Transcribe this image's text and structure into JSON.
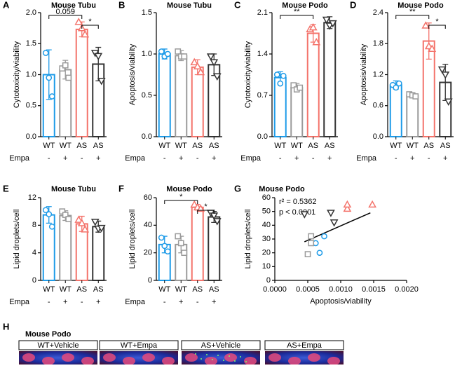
{
  "chart_data": [
    {
      "type": "bar",
      "panel": "A",
      "title": "Mouse Tubu",
      "ylabel": "Cytotoxicity/viability",
      "categories": [
        "WT",
        "WT",
        "AS",
        "AS"
      ],
      "row_label": "Empa",
      "row": [
        "-",
        "+",
        "-",
        "+"
      ],
      "colors": [
        "#1e9be8",
        "#9a9a9a",
        "#f4736b",
        "#333333"
      ],
      "markers": [
        "circle",
        "square",
        "triangle-up",
        "triangle-down"
      ],
      "values": [
        1.0,
        1.08,
        1.73,
        1.17
      ],
      "errors": [
        0.4,
        0.15,
        0.12,
        0.27
      ],
      "points": [
        [
          1.35,
          0.95,
          0.65
        ],
        [
          1.1,
          1.15,
          0.95
        ],
        [
          1.85,
          1.75,
          1.65
        ],
        [
          1.35,
          1.3,
          0.9
        ]
      ],
      "ylim": [
        0,
        2
      ],
      "yticks": [
        {
          "value": 0,
          "label": "0.0"
        },
        {
          "value": 0.5,
          "label": "0.5"
        },
        {
          "value": 1,
          "label": "1.0"
        },
        {
          "value": 1.5,
          "label": "1.5"
        },
        {
          "value": 2,
          "label": "2.0"
        }
      ],
      "annotations": [
        {
          "text": "0.059",
          "between": [
            0,
            2
          ]
        },
        {
          "text": "*",
          "between": [
            2,
            3
          ]
        }
      ]
    },
    {
      "type": "bar",
      "panel": "B",
      "title": "Mouse Tubu",
      "ylabel": "Apoptosis/viability",
      "categories": [
        "WT",
        "WT",
        "AS",
        "AS"
      ],
      "row_label": "Empa",
      "row": [
        "-",
        "+",
        "-",
        "+"
      ],
      "colors": [
        "#1e9be8",
        "#9a9a9a",
        "#f4736b",
        "#333333"
      ],
      "markers": [
        "circle",
        "square",
        "triangle-up",
        "triangle-down"
      ],
      "values": [
        1.0,
        0.98,
        0.84,
        0.87
      ],
      "errors": [
        0.06,
        0.06,
        0.09,
        0.13
      ],
      "points": [
        [
          1.03,
          0.97,
          1.0
        ],
        [
          1.03,
          0.97,
          0.97
        ],
        [
          0.9,
          0.85,
          0.78
        ],
        [
          0.97,
          0.9,
          0.73
        ]
      ],
      "ylim": [
        0,
        1.5
      ],
      "yticks": [
        {
          "value": 0,
          "label": "0.0"
        },
        {
          "value": 0.5,
          "label": "0.5"
        },
        {
          "value": 1,
          "label": "1.0"
        },
        {
          "value": 1.5,
          "label": "1.5"
        }
      ],
      "annotations": []
    },
    {
      "type": "bar",
      "panel": "C",
      "title": "Mouse Podo",
      "ylabel": "Cytotoxicity/viability",
      "categories": [
        "WT",
        "WT",
        "AS",
        "AS"
      ],
      "row_label": "Empa",
      "row": [
        "-",
        "+",
        "-",
        "+"
      ],
      "colors": [
        "#1e9be8",
        "#9a9a9a",
        "#f4736b",
        "#333333"
      ],
      "markers": [
        "circle",
        "square",
        "triangle-up",
        "triangle-down"
      ],
      "values": [
        1.0,
        0.83,
        1.75,
        1.93
      ],
      "errors": [
        0.1,
        0.07,
        0.15,
        0.1
      ],
      "points": [
        [
          1.05,
          0.9,
          1.03
        ],
        [
          0.87,
          0.8,
          0.83
        ],
        [
          1.82,
          1.85,
          1.6
        ],
        [
          1.98,
          1.88,
          1.92
        ]
      ],
      "ylim": [
        0,
        2.1
      ],
      "yticks": [
        {
          "value": 0,
          "label": "0.0"
        },
        0.7,
        1.4,
        2.1
      ],
      "annotations": [
        {
          "text": "**",
          "between": [
            0,
            2
          ]
        }
      ]
    },
    {
      "type": "bar",
      "panel": "D",
      "title": "Mouse Podo",
      "ylabel": "Apoptosis/viability",
      "categories": [
        "WT",
        "WT",
        "AS",
        "AS"
      ],
      "row_label": "Empa",
      "row": [
        "-",
        "+",
        "-",
        "+"
      ],
      "colors": [
        "#1e9be8",
        "#9a9a9a",
        "#f4736b",
        "#333333"
      ],
      "markers": [
        "circle",
        "square",
        "triangle-up",
        "triangle-down"
      ],
      "values": [
        1.0,
        0.8,
        1.85,
        1.05
      ],
      "errors": [
        0.08,
        0.05,
        0.35,
        0.35
      ],
      "points": [
        [
          1.0,
          0.95,
          1.03
        ],
        [
          0.82,
          0.8,
          0.78
        ],
        [
          2.15,
          1.75,
          1.7
        ],
        [
          1.3,
          1.2,
          0.68
        ]
      ],
      "ylim": [
        0,
        2.4
      ],
      "yticks": [
        {
          "value": 0,
          "label": "0.0"
        },
        0.6,
        1.2,
        1.8,
        2.4
      ],
      "annotations": [
        {
          "text": "**",
          "between": [
            0,
            2
          ]
        },
        {
          "text": "*",
          "between": [
            2,
            3
          ]
        }
      ]
    },
    {
      "type": "bar",
      "panel": "E",
      "title": "Mouse Tubu",
      "ylabel": "Lipid droplets/cell",
      "categories": [
        "WT",
        "WT",
        "AS",
        "AS"
      ],
      "row_label": "Empa",
      "row": [
        "-",
        "+",
        "-",
        "+"
      ],
      "colors": [
        "#1e9be8",
        "#9a9a9a",
        "#f4736b",
        "#333333"
      ],
      "markers": [
        "circle",
        "square",
        "triangle-up",
        "triangle-down"
      ],
      "values": [
        9.5,
        9.4,
        8.2,
        7.8
      ],
      "errors": [
        1.2,
        0.7,
        1.1,
        0.8
      ],
      "points": [
        [
          10.2,
          9.6,
          7.8
        ],
        [
          10,
          9.5,
          8.9
        ],
        [
          8.8,
          8.3,
          7.4
        ],
        [
          8.5,
          7.5,
          7.6
        ]
      ],
      "ylim": [
        0,
        12
      ],
      "yticks": [
        0,
        4,
        8,
        12
      ],
      "annotations": []
    },
    {
      "type": "bar",
      "panel": "F",
      "title": "Mouse Podo",
      "ylabel": "Lipid droplets/cell",
      "categories": [
        "WT",
        "WT",
        "AS",
        "AS"
      ],
      "row_label": "Empa",
      "row": [
        "-",
        "+",
        "-",
        "+"
      ],
      "colors": [
        "#1e9be8",
        "#9a9a9a",
        "#f4736b",
        "#333333"
      ],
      "markers": [
        "circle",
        "square",
        "triangle-up",
        "triangle-down"
      ],
      "values": [
        26,
        26,
        53,
        46
      ],
      "errors": [
        6,
        6,
        2,
        4
      ],
      "points": [
        [
          31,
          25,
          21
        ],
        [
          32,
          27,
          20
        ],
        [
          55,
          53,
          52
        ],
        [
          49,
          47,
          43
        ]
      ],
      "ylim": [
        0,
        60
      ],
      "yticks": [
        0,
        20,
        40,
        60
      ],
      "annotations": [
        {
          "text": "*",
          "between": [
            0,
            2
          ]
        },
        {
          "text": "*",
          "between": [
            2,
            3
          ]
        }
      ]
    },
    {
      "type": "scatter",
      "panel": "G",
      "title": "Mouse Podo",
      "xlabel": "Apoptosis/viability",
      "ylabel": "Lipid droplets/cell",
      "annotations": [
        "r² = 0.5362",
        "p < 0.0001"
      ],
      "series": [
        {
          "color": "#1e9be8",
          "marker": "circle",
          "x": [
            0.00068,
            0.00062,
            0.00075
          ],
          "y": [
            20,
            27,
            32
          ]
        },
        {
          "color": "#9a9a9a",
          "marker": "square",
          "x": [
            0.0005,
            0.00055,
            0.00055
          ],
          "y": [
            19,
            27,
            32
          ]
        },
        {
          "color": "#f4736b",
          "marker": "triangle-up",
          "x": [
            0.0011,
            0.0011,
            0.00148
          ],
          "y": [
            52,
            55,
            55
          ]
        },
        {
          "color": "#333333",
          "marker": "triangle-down",
          "x": [
            0.00045,
            0.00085,
            0.0009
          ],
          "y": [
            48,
            49,
            42
          ]
        }
      ],
      "fit": {
        "x": [
          0.00045,
          0.00145
        ],
        "y": [
          28,
          49
        ]
      },
      "xlim": [
        0,
        0.002
      ],
      "xticks": [
        {
          "value": 0,
          "label": "0.0000"
        },
        {
          "value": 0.0005,
          "label": "0.0005"
        },
        {
          "value": 0.001,
          "label": "0.0010"
        },
        {
          "value": 0.0015,
          "label": "0.0015"
        },
        {
          "value": 0.002,
          "label": "0.0020"
        }
      ],
      "ylim": [
        0,
        60
      ],
      "yticks": [
        0,
        10,
        20,
        30,
        40,
        50,
        60
      ]
    }
  ],
  "image_panel": {
    "panel": "H",
    "title": "Mouse Podo",
    "labels": [
      "WT+Vehicle",
      "WT+Empa",
      "AS+Vehicle",
      "AS+Empa"
    ]
  }
}
